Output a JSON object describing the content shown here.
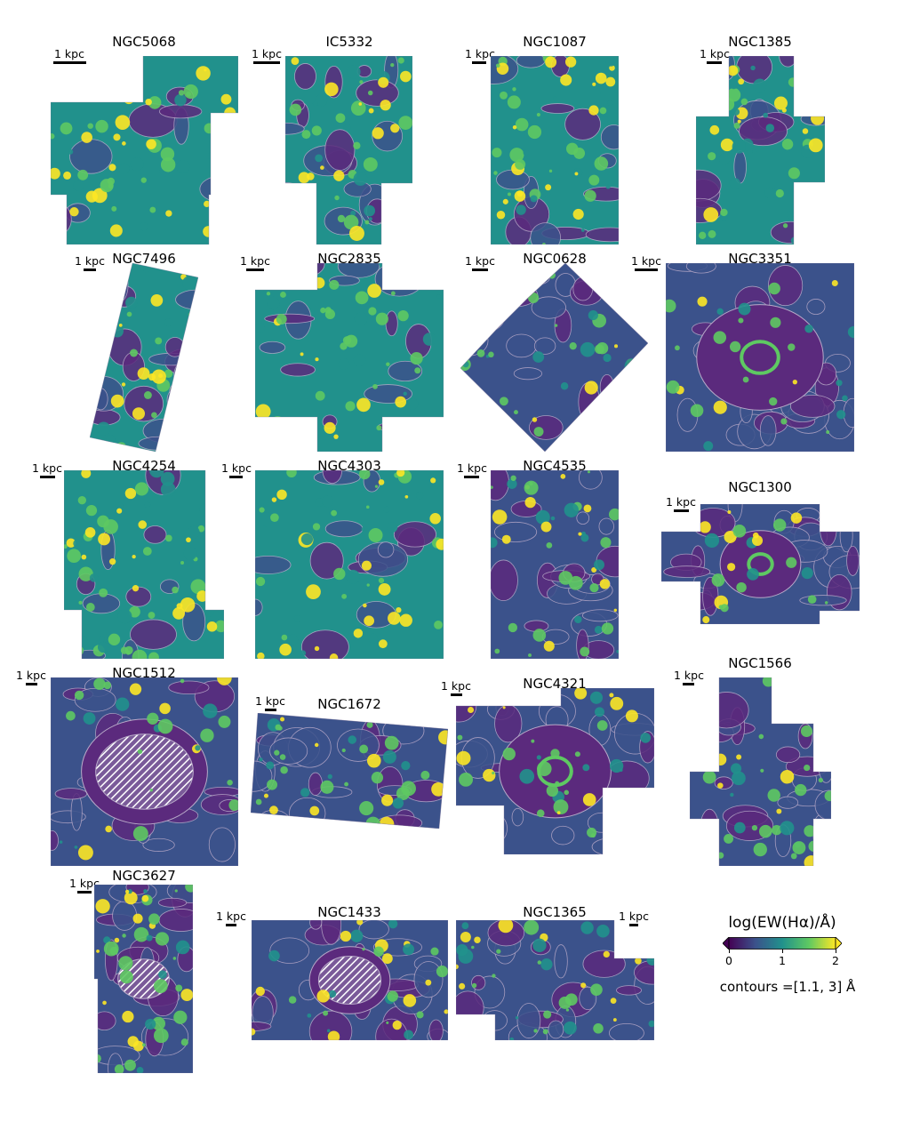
{
  "colormap": {
    "name": "viridis",
    "stops": [
      "#440154",
      "#3b528b",
      "#21918c",
      "#5ec962",
      "#fde725"
    ],
    "low_color": "#5b2a7d",
    "contour_color": "#b8a9c8",
    "hatch_color": "#ffffff"
  },
  "scale_label": "1 kpc",
  "galaxies": [
    {
      "name": "NGC5068"
    },
    {
      "name": "IC5332"
    },
    {
      "name": "NGC1087"
    },
    {
      "name": "NGC1385"
    },
    {
      "name": "NGC7496"
    },
    {
      "name": "NGC2835"
    },
    {
      "name": "NGC0628"
    },
    {
      "name": "NGC3351"
    },
    {
      "name": "NGC4254"
    },
    {
      "name": "NGC4303"
    },
    {
      "name": "NGC4535"
    },
    {
      "name": "NGC1300"
    },
    {
      "name": "NGC1512"
    },
    {
      "name": "NGC1672"
    },
    {
      "name": "NGC4321"
    },
    {
      "name": "NGC1566"
    },
    {
      "name": "NGC3627"
    },
    {
      "name": "NGC1433"
    },
    {
      "name": "NGC1365"
    }
  ],
  "colorbar": {
    "label": "log(EW(Hα)/Å)",
    "ticks": [
      "0",
      "1",
      "2"
    ],
    "range": [
      0,
      2
    ],
    "extend": "both",
    "contours_note": "contours =[1.1, 3] Å"
  }
}
